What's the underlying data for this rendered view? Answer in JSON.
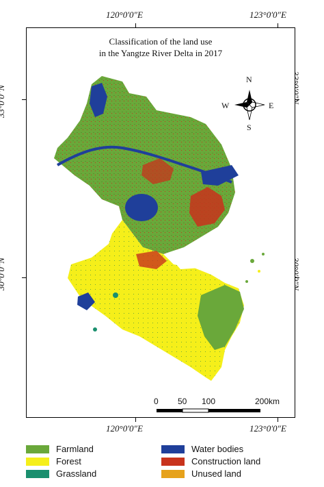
{
  "map": {
    "title_line1": "Classification of the land use",
    "title_line2": "in the Yangtze River Delta in 2017",
    "lon_labels": [
      "120°0′0″E",
      "123°0′0″E"
    ],
    "lat_labels": [
      "33°0′0″N",
      "30°0′0″N"
    ],
    "compass": {
      "n": "N",
      "s": "S",
      "e": "E",
      "w": "W"
    },
    "scale": {
      "labels": [
        "0",
        "50",
        "100",
        "200"
      ],
      "unit": "km"
    }
  },
  "legend": [
    {
      "label": "Farmland",
      "color": "#6aa83a"
    },
    {
      "label": "Forest",
      "color": "#f5ef1a"
    },
    {
      "label": "Grassland",
      "color": "#1a8f6e"
    },
    {
      "label": "Water bodies",
      "color": "#1f3f9a"
    },
    {
      "label": "Construction land",
      "color": "#c8331c"
    },
    {
      "label": "Unused land",
      "color": "#e6a21c"
    }
  ]
}
